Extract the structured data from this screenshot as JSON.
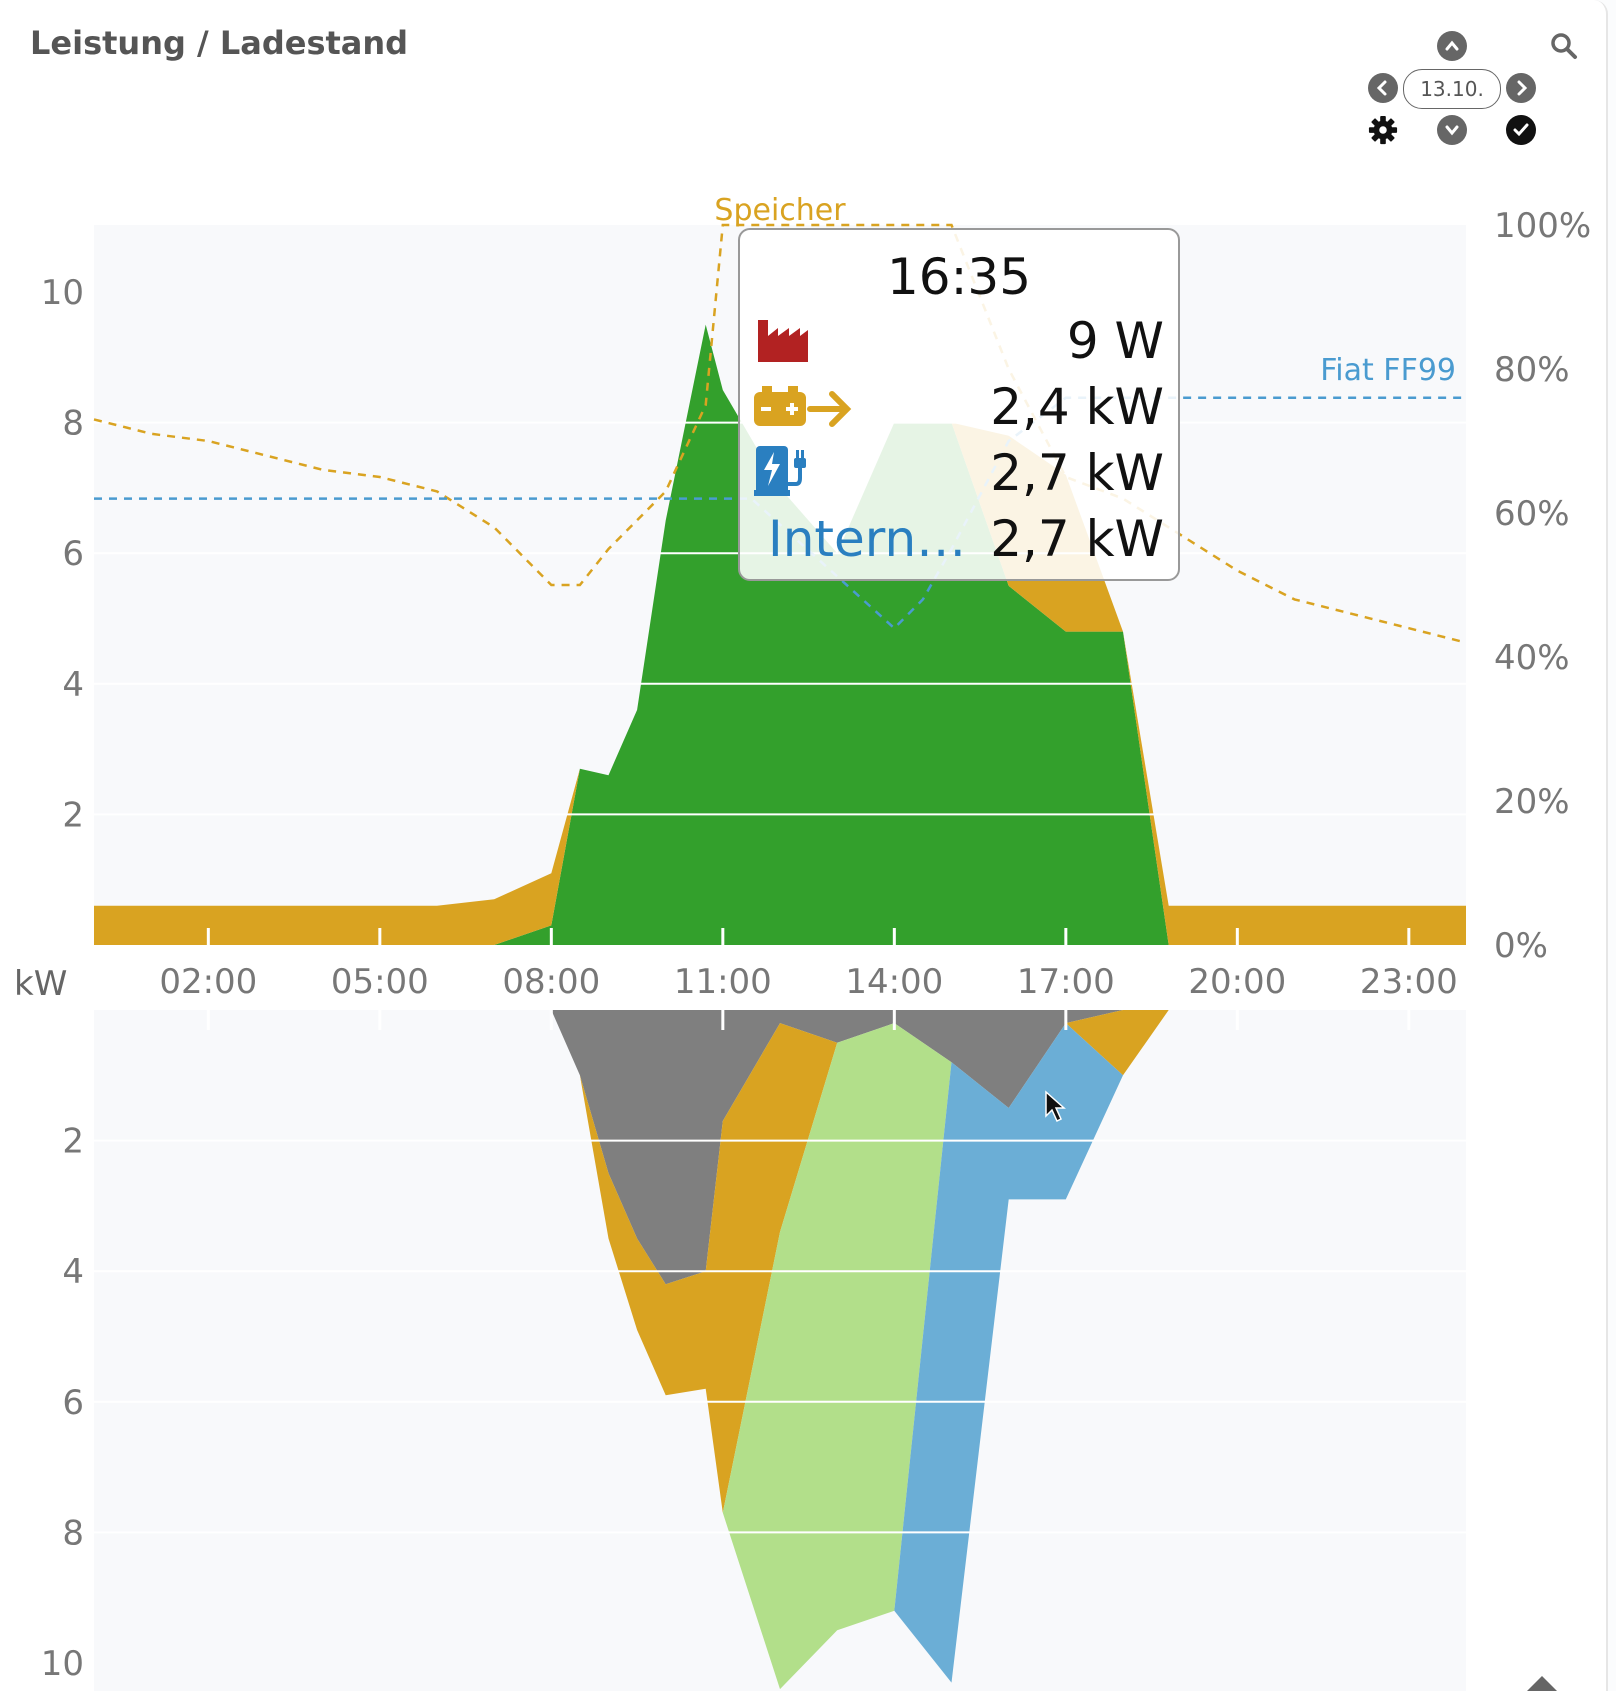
{
  "header": {
    "title": "Leistung / Ladestand"
  },
  "controls": {
    "date": "13.10.",
    "icons": [
      "chevron-up-icon",
      "chevron-left-icon",
      "chevron-right-icon",
      "chevron-down-icon",
      "gear-icon",
      "check-icon",
      "search-icon"
    ]
  },
  "tooltip": {
    "time": "16:35",
    "rows": [
      {
        "icon": "factory-icon",
        "color": "#b22222",
        "value": "9 W"
      },
      {
        "icon": "battery-arrow-icon",
        "color": "#d9a321",
        "value": "2,4 kW"
      },
      {
        "icon": "ev-charger-icon",
        "color": "#2a7fc0",
        "value": "2,7 kW"
      },
      {
        "label": "Intern…",
        "color": "#2a7fc0",
        "value": "2,7 kW"
      }
    ]
  },
  "chart_data": {
    "type": "area",
    "unit_label": "kW",
    "x_ticks": [
      "02:00",
      "05:00",
      "08:00",
      "11:00",
      "14:00",
      "17:00",
      "20:00",
      "23:00"
    ],
    "y_ticks_top": [
      "2",
      "4",
      "6",
      "8",
      "10"
    ],
    "y_ticks_bottom": [
      "2",
      "4",
      "6",
      "8",
      "10"
    ],
    "y2_ticks": [
      "0%",
      "20%",
      "40%",
      "60%",
      "80%",
      "100%"
    ],
    "annotations": {
      "speicher": "Speicher",
      "vehicle": "Fiat FF99"
    },
    "colors": {
      "pv": "#33a02c",
      "pv_light": "#b2df8a",
      "battery": "#d9a321",
      "grid": "#b22222",
      "house": "#7f7f7f",
      "ev": "#6baed6",
      "vehicle_soc": "#4a9bd0",
      "battery_soc": "#d9a321"
    },
    "x_hours": [
      0,
      6,
      7,
      8,
      8.5,
      9,
      9.5,
      10,
      10.7,
      11,
      12,
      13,
      14,
      15,
      16,
      17,
      18,
      18.8,
      24
    ],
    "top_series": [
      {
        "key": "pv",
        "values": [
          0,
          0,
          0,
          0.3,
          2.7,
          2.6,
          3.6,
          6.5,
          9.5,
          8.5,
          7,
          6,
          8,
          8,
          5.5,
          4.8,
          4.8,
          0,
          0
        ]
      },
      {
        "key": "battery",
        "values": [
          0.6,
          0.6,
          0.7,
          0.8,
          0,
          0,
          0,
          0,
          0,
          0,
          0,
          0,
          0,
          0,
          2.3,
          2.4,
          0,
          0.6,
          0.6
        ]
      }
    ],
    "bottom_series": [
      {
        "key": "house",
        "values": [
          0,
          0,
          0,
          0,
          1,
          2.5,
          3.5,
          4.2,
          4,
          1.7,
          0.2,
          0.5,
          0.2,
          0.8,
          1.5,
          0.2,
          0,
          0,
          0
        ]
      },
      {
        "key": "battery",
        "values": [
          0,
          0,
          0,
          0,
          0,
          1,
          1.4,
          1.7,
          1.8,
          6,
          3.2,
          0,
          0,
          0,
          0,
          0,
          1,
          0,
          0
        ]
      },
      {
        "key": "pv_light",
        "values": [
          0,
          0,
          0,
          0,
          0,
          0,
          0,
          0,
          0,
          0,
          7,
          9,
          9,
          0,
          0,
          0,
          0,
          0,
          0
        ]
      },
      {
        "key": "ev",
        "values": [
          0,
          0,
          0,
          0,
          0,
          0,
          0,
          0,
          0,
          0,
          0,
          0,
          0,
          9.5,
          1.4,
          2.7,
          0,
          0,
          0
        ]
      }
    ],
    "battery_soc": {
      "x_hours": [
        0,
        1,
        2,
        3,
        4,
        5,
        6,
        7,
        8,
        8.5,
        9,
        10,
        10.7,
        11,
        12,
        13,
        14,
        15,
        16,
        17,
        18,
        19,
        20,
        21,
        22,
        23,
        24
      ],
      "values": [
        73,
        71,
        70,
        68,
        66,
        65,
        63,
        58,
        50,
        50,
        55,
        63,
        75,
        100,
        100,
        100,
        100,
        100,
        80,
        65,
        62,
        57,
        52,
        48,
        46,
        44,
        42
      ]
    },
    "vehicle_soc": {
      "x_hours": [
        0,
        11,
        11.5,
        14,
        14.5,
        15,
        16,
        17,
        18,
        24
      ],
      "values": [
        62,
        62,
        62,
        44,
        48,
        55,
        70,
        76,
        76,
        76
      ]
    },
    "ylim_top": [
      0,
      11
    ],
    "ylim_bottom": [
      0,
      11
    ],
    "y2lim": [
      0,
      100
    ]
  }
}
